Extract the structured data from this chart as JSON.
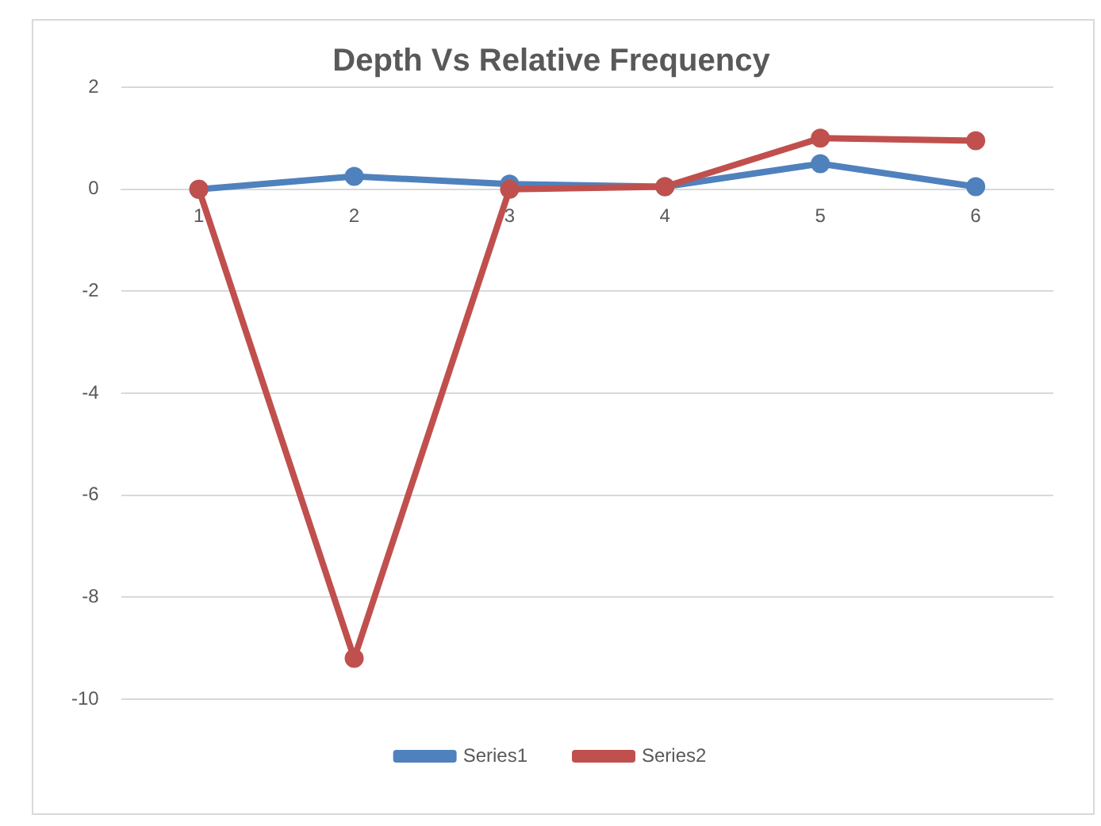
{
  "chart_data": {
    "type": "line",
    "title": "Depth Vs Relative Frequency",
    "categories": [
      "1",
      "2",
      "3",
      "4",
      "5",
      "6"
    ],
    "series": [
      {
        "name": "Series1",
        "color": "#4f81bd",
        "values": [
          0,
          0.25,
          0.1,
          0.05,
          0.5,
          0.05
        ]
      },
      {
        "name": "Series2",
        "color": "#c0504d",
        "values": [
          0,
          -9.2,
          0,
          0.05,
          1.0,
          0.95
        ]
      }
    ],
    "ylim": [
      -10,
      2
    ],
    "yticks": [
      2,
      0,
      -2,
      -4,
      -6,
      -8,
      -10
    ],
    "grid": "y",
    "legend": "bottom",
    "marker": "circle",
    "line_style": "solid"
  }
}
